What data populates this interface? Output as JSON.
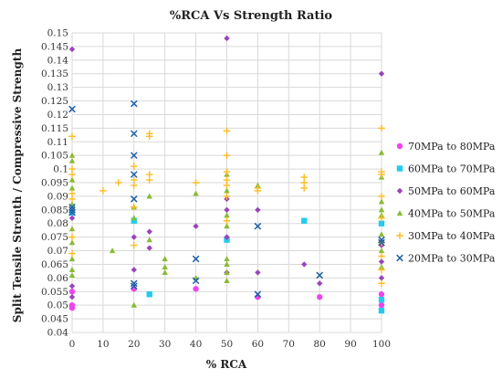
{
  "chart_data": {
    "type": "scatter",
    "title": "%RCA Vs Strength Ratio",
    "xlabel": "% RCA",
    "ylabel": "Split Tensile Strenth / Compressive Strength",
    "xlim": [
      0,
      100
    ],
    "ylim": [
      0.04,
      0.15
    ],
    "x_ticks": [
      0,
      10,
      20,
      30,
      40,
      50,
      60,
      70,
      80,
      90,
      100
    ],
    "y_ticks": [
      0.04,
      0.045,
      0.05,
      0.055,
      0.06,
      0.065,
      0.07,
      0.075,
      0.08,
      0.085,
      0.09,
      0.095,
      0.1,
      0.105,
      0.11,
      0.115,
      0.12,
      0.125,
      0.13,
      0.135,
      0.14,
      0.145,
      0.15
    ],
    "grid": "both",
    "legend_position": "right",
    "series": [
      {
        "name": "70MPa to 80MPa",
        "color": "#ee44ee",
        "marker": "circle",
        "points": [
          [
            0,
            0.05
          ],
          [
            0,
            0.049
          ],
          [
            0,
            0.055
          ],
          [
            20,
            0.056
          ],
          [
            40,
            0.056
          ],
          [
            60,
            0.053
          ],
          [
            80,
            0.053
          ],
          [
            100,
            0.05
          ],
          [
            100,
            0.054
          ]
        ]
      },
      {
        "name": "60MPa to 70MPa",
        "color": "#22ccee",
        "marker": "square",
        "points": [
          [
            0,
            0.084
          ],
          [
            20,
            0.081
          ],
          [
            25,
            0.054
          ],
          [
            50,
            0.074
          ],
          [
            75,
            0.081
          ],
          [
            100,
            0.08
          ],
          [
            100,
            0.052
          ],
          [
            100,
            0.048
          ]
        ]
      },
      {
        "name": "50MPa to 60MPa",
        "color": "#9944bb",
        "marker": "diamond",
        "points": [
          [
            0,
            0.144
          ],
          [
            0,
            0.082
          ],
          [
            0,
            0.057
          ],
          [
            0,
            0.053
          ],
          [
            20,
            0.063
          ],
          [
            20,
            0.075
          ],
          [
            25,
            0.077
          ],
          [
            25,
            0.071
          ],
          [
            40,
            0.079
          ],
          [
            50,
            0.148
          ],
          [
            50,
            0.089
          ],
          [
            50,
            0.085
          ],
          [
            50,
            0.075
          ],
          [
            50,
            0.062
          ],
          [
            60,
            0.085
          ],
          [
            60,
            0.062
          ],
          [
            75,
            0.065
          ],
          [
            80,
            0.058
          ],
          [
            100,
            0.135
          ],
          [
            100,
            0.072
          ],
          [
            100,
            0.066
          ],
          [
            100,
            0.06
          ]
        ]
      },
      {
        "name": "40MPa to 50MPa",
        "color": "#88bb33",
        "marker": "triangle",
        "points": [
          [
            0,
            0.105
          ],
          [
            0,
            0.103
          ],
          [
            0,
            0.096
          ],
          [
            0,
            0.093
          ],
          [
            0,
            0.087
          ],
          [
            0,
            0.078
          ],
          [
            0,
            0.073
          ],
          [
            0,
            0.067
          ],
          [
            0,
            0.063
          ],
          [
            0,
            0.061
          ],
          [
            13,
            0.07
          ],
          [
            20,
            0.086
          ],
          [
            20,
            0.082
          ],
          [
            20,
            0.05
          ],
          [
            25,
            0.09
          ],
          [
            25,
            0.074
          ],
          [
            30,
            0.067
          ],
          [
            30,
            0.064
          ],
          [
            30,
            0.062
          ],
          [
            40,
            0.091
          ],
          [
            40,
            0.06
          ],
          [
            50,
            0.098
          ],
          [
            50,
            0.092
          ],
          [
            50,
            0.083
          ],
          [
            50,
            0.079
          ],
          [
            50,
            0.067
          ],
          [
            50,
            0.065
          ],
          [
            50,
            0.062
          ],
          [
            50,
            0.059
          ],
          [
            60,
            0.094
          ],
          [
            100,
            0.106
          ],
          [
            100,
            0.097
          ],
          [
            100,
            0.088
          ],
          [
            100,
            0.085
          ],
          [
            100,
            0.083
          ],
          [
            100,
            0.076
          ],
          [
            100,
            0.07
          ],
          [
            100,
            0.064
          ]
        ]
      },
      {
        "name": "30MPa to 40MPa",
        "color": "#ffbb22",
        "marker": "plus",
        "points": [
          [
            0,
            0.112
          ],
          [
            0,
            0.1
          ],
          [
            0,
            0.098
          ],
          [
            0,
            0.091
          ],
          [
            0,
            0.089
          ],
          [
            0,
            0.075
          ],
          [
            0,
            0.069
          ],
          [
            10,
            0.092
          ],
          [
            15,
            0.095
          ],
          [
            20,
            0.101
          ],
          [
            20,
            0.096
          ],
          [
            20,
            0.094
          ],
          [
            20,
            0.086
          ],
          [
            20,
            0.072
          ],
          [
            25,
            0.113
          ],
          [
            25,
            0.112
          ],
          [
            25,
            0.098
          ],
          [
            25,
            0.096
          ],
          [
            40,
            0.095
          ],
          [
            50,
            0.114
          ],
          [
            50,
            0.105
          ],
          [
            50,
            0.099
          ],
          [
            50,
            0.096
          ],
          [
            50,
            0.094
          ],
          [
            50,
            0.09
          ],
          [
            50,
            0.081
          ],
          [
            60,
            0.093
          ],
          [
            60,
            0.092
          ],
          [
            75,
            0.097
          ],
          [
            75,
            0.095
          ],
          [
            75,
            0.093
          ],
          [
            100,
            0.115
          ],
          [
            100,
            0.099
          ],
          [
            100,
            0.098
          ],
          [
            100,
            0.09
          ],
          [
            100,
            0.082
          ],
          [
            100,
            0.073
          ],
          [
            100,
            0.068
          ],
          [
            100,
            0.063
          ],
          [
            100,
            0.058
          ]
        ]
      },
      {
        "name": "20MPa to 30MPa",
        "color": "#1f5fa8",
        "marker": "x",
        "points": [
          [
            0,
            0.122
          ],
          [
            0,
            0.086
          ],
          [
            0,
            0.085
          ],
          [
            0,
            0.084
          ],
          [
            20,
            0.124
          ],
          [
            20,
            0.113
          ],
          [
            20,
            0.105
          ],
          [
            20,
            0.098
          ],
          [
            20,
            0.089
          ],
          [
            20,
            0.058
          ],
          [
            20,
            0.057
          ],
          [
            40,
            0.067
          ],
          [
            40,
            0.059
          ],
          [
            60,
            0.079
          ],
          [
            60,
            0.054
          ],
          [
            80,
            0.061
          ],
          [
            100,
            0.074
          ],
          [
            100,
            0.073
          ]
        ]
      }
    ]
  }
}
